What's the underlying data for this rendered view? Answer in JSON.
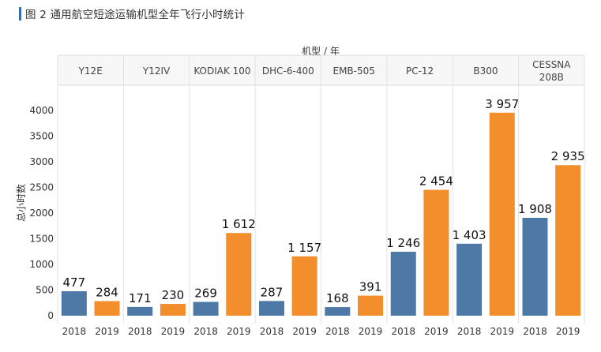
{
  "title": "图 2 通用航空短途运输机型全年飞行小时统计",
  "chart_data": {
    "type": "bar",
    "title": "图 2 通用航空短途运输机型全年飞行小时统计",
    "group_axis_label": "机型 / 年",
    "ylabel": "总小时数",
    "ylim": [
      0,
      4200
    ],
    "yticks": [
      0,
      500,
      1000,
      1500,
      2000,
      2500,
      3000,
      3500,
      4000
    ],
    "groups": [
      "Y12E",
      "Y12IV",
      "KODIAK 100",
      "DHC-6-400",
      "EMB-505",
      "PC-12",
      "B300",
      "CESSNA 208B"
    ],
    "years": [
      "2018",
      "2019"
    ],
    "series": [
      {
        "name": "2018",
        "color": "#4e79a7",
        "values": [
          477,
          171,
          269,
          287,
          168,
          1246,
          1403,
          1908
        ],
        "labels": [
          "477",
          "171",
          "269",
          "287",
          "168",
          "1 246",
          "1 403",
          "1 908"
        ]
      },
      {
        "name": "2019",
        "color": "#f28e2b",
        "values": [
          284,
          230,
          1612,
          1157,
          391,
          2454,
          3957,
          2935
        ],
        "labels": [
          "284",
          "230",
          "1 612",
          "1 157",
          "391",
          "2 454",
          "3 957",
          "2 935"
        ]
      }
    ],
    "grid": false,
    "legend": "none"
  }
}
